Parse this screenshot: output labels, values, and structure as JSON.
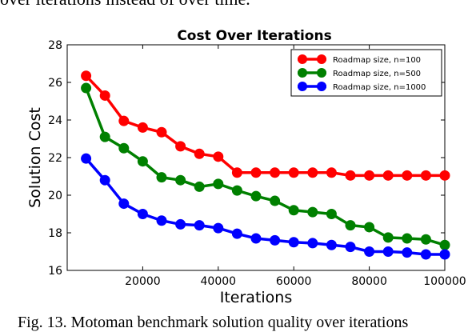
{
  "page": {
    "top_text": "over iterations instead of over time.",
    "caption": "Fig. 13.   Motoman benchmark solution quality over iterations"
  },
  "chart_data": {
    "type": "line",
    "title": "Cost Over Iterations",
    "xlabel": "Iterations",
    "ylabel": "Solution Cost",
    "xlim": [
      0,
      100000
    ],
    "ylim": [
      16,
      28
    ],
    "xticks": [
      20000,
      40000,
      60000,
      80000,
      100000
    ],
    "xtick_labels": [
      "20000",
      "40000",
      "60000",
      "80000",
      "100000"
    ],
    "yticks": [
      16,
      18,
      20,
      22,
      24,
      26,
      28
    ],
    "ytick_labels": [
      "16",
      "18",
      "20",
      "22",
      "24",
      "26",
      "28"
    ],
    "grid": false,
    "legend_position": "top-right",
    "x": [
      5000,
      10000,
      15000,
      20000,
      25000,
      30000,
      35000,
      40000,
      45000,
      50000,
      55000,
      60000,
      65000,
      70000,
      75000,
      80000,
      85000,
      90000,
      95000,
      100000
    ],
    "series": [
      {
        "name": "Roadmap size, n=100",
        "color": "#ff0000",
        "values": [
          26.35,
          25.3,
          23.95,
          23.6,
          23.35,
          22.6,
          22.2,
          22.05,
          21.2,
          21.2,
          21.2,
          21.2,
          21.2,
          21.2,
          21.05,
          21.05,
          21.05,
          21.05,
          21.05,
          21.05
        ]
      },
      {
        "name": "Roadmap size, n=500",
        "color": "#008000",
        "values": [
          25.7,
          23.1,
          22.5,
          21.8,
          20.95,
          20.8,
          20.45,
          20.6,
          20.25,
          19.95,
          19.7,
          19.2,
          19.1,
          19.0,
          18.4,
          18.3,
          17.75,
          17.7,
          17.65,
          17.35
        ]
      },
      {
        "name": "Roadmap size, n=1000",
        "color": "#0000ff",
        "values": [
          21.95,
          20.8,
          19.55,
          19.0,
          18.65,
          18.45,
          18.4,
          18.25,
          17.95,
          17.7,
          17.6,
          17.5,
          17.45,
          17.35,
          17.25,
          17.0,
          17.0,
          16.95,
          16.85,
          16.85
        ]
      }
    ]
  }
}
